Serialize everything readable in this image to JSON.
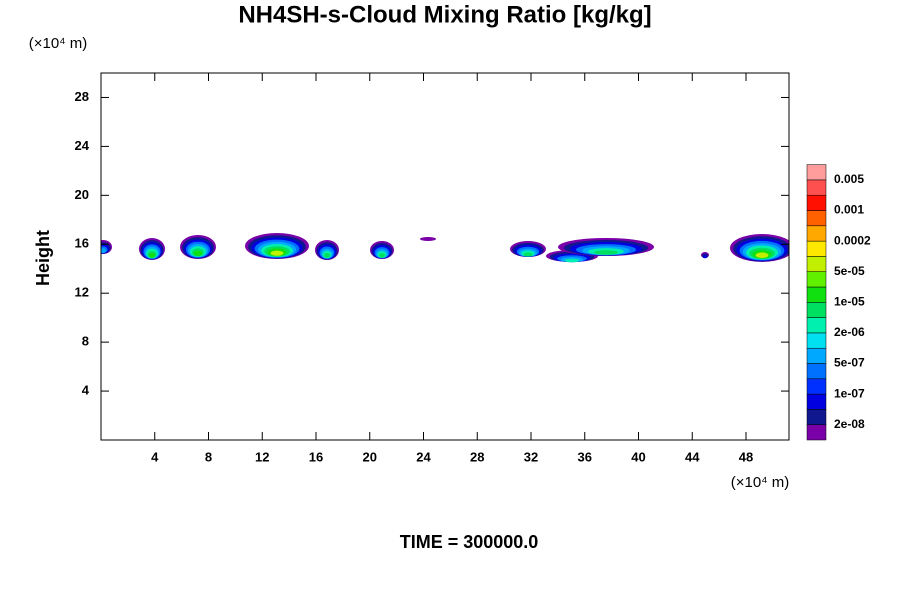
{
  "chart_data": {
    "type": "contour",
    "title": "NH4SH-s-Cloud Mixing Ratio [kg/kg]",
    "y_label": "Height",
    "x_unit": "(×10⁴ m)",
    "y_unit": "(×10⁴ m)",
    "footer": "TIME = 300000.0",
    "xlim": [
      0,
      51.2
    ],
    "ylim": [
      0,
      30
    ],
    "xticks": [
      4,
      8,
      12,
      16,
      20,
      24,
      28,
      32,
      36,
      40,
      44,
      48
    ],
    "yticks": [
      4,
      8,
      12,
      16,
      20,
      24,
      28
    ],
    "colorbar": {
      "colors": [
        "#7a00a8",
        "#101890",
        "#0000e0",
        "#0030ff",
        "#0070ff",
        "#00a8ff",
        "#00e0f0",
        "#00f0b0",
        "#00e060",
        "#10e010",
        "#60f000",
        "#c0f000",
        "#ffe800",
        "#ffa800",
        "#ff6000",
        "#ff1000",
        "#ff5050",
        "#ff9c9c"
      ],
      "ticks": [
        {
          "value": 2e-08,
          "label": "2e-08"
        },
        {
          "value": 1e-07,
          "label": "1e-07"
        },
        {
          "value": 5e-07,
          "label": "5e-07"
        },
        {
          "value": 2e-06,
          "label": "2e-06"
        },
        {
          "value": 1e-05,
          "label": "1e-05"
        },
        {
          "value": 5e-05,
          "label": "5e-05"
        },
        {
          "value": 0.0002,
          "label": "0.0002"
        },
        {
          "value": 0.001,
          "label": "0.001"
        },
        {
          "value": 0.005,
          "label": "0.005"
        }
      ]
    }
  }
}
